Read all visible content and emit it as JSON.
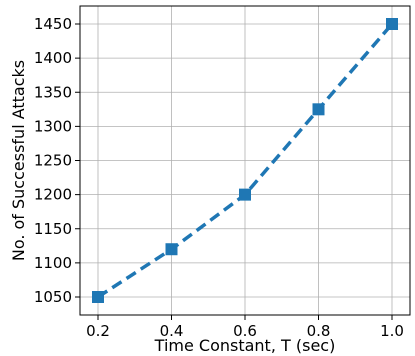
{
  "chart_data": {
    "type": "line",
    "title": "",
    "xlabel": "Time Constant, T (sec)",
    "ylabel": "No. of Successful Attacks",
    "x": [
      0.2,
      0.4,
      0.6,
      0.8,
      1.0
    ],
    "series": [
      {
        "values": [
          1050,
          1120,
          1200,
          1325,
          1450
        ]
      }
    ],
    "xticks": [
      "0.2",
      "0.4",
      "0.6",
      "0.8",
      "1.0"
    ],
    "yticks": [
      "1050",
      "1100",
      "1150",
      "1200",
      "1250",
      "1300",
      "1350",
      "1400",
      "1450"
    ],
    "xlim": [
      0.2,
      1.0
    ],
    "ylim": [
      1050,
      1450
    ],
    "grid": true,
    "line_style": "dashed",
    "marker": "square",
    "color": "#1f77b4"
  }
}
